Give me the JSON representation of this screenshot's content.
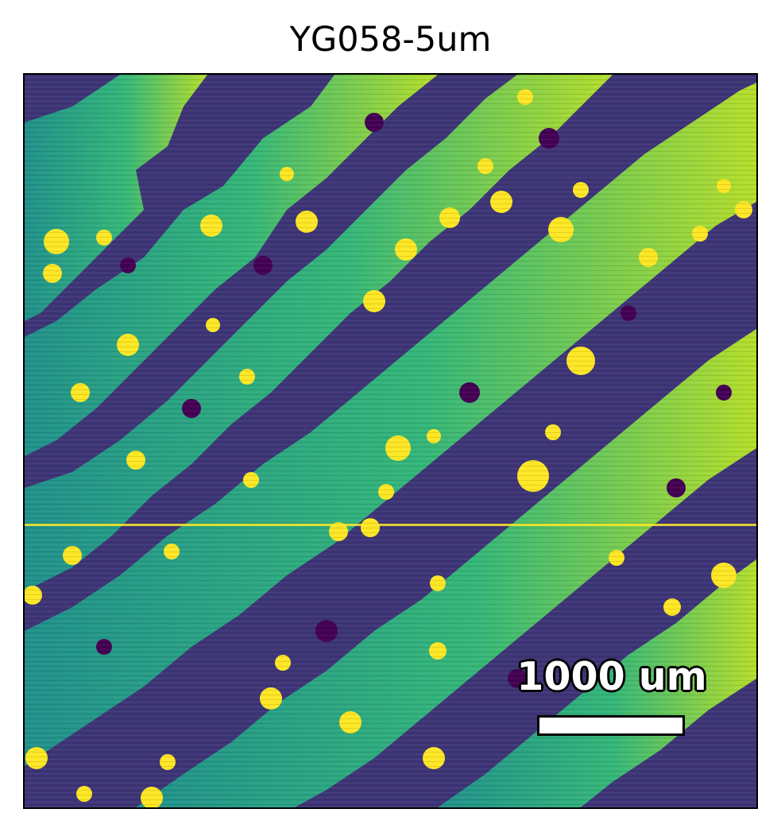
{
  "figure": {
    "title": "YG058-5um",
    "scale_bar": {
      "label": "1000 um"
    }
  },
  "colors": {
    "background": "#ffffff",
    "frame": "#000000",
    "colormap": [
      "#440154",
      "#3b528b",
      "#21918c",
      "#5ec962",
      "#fde725"
    ]
  }
}
